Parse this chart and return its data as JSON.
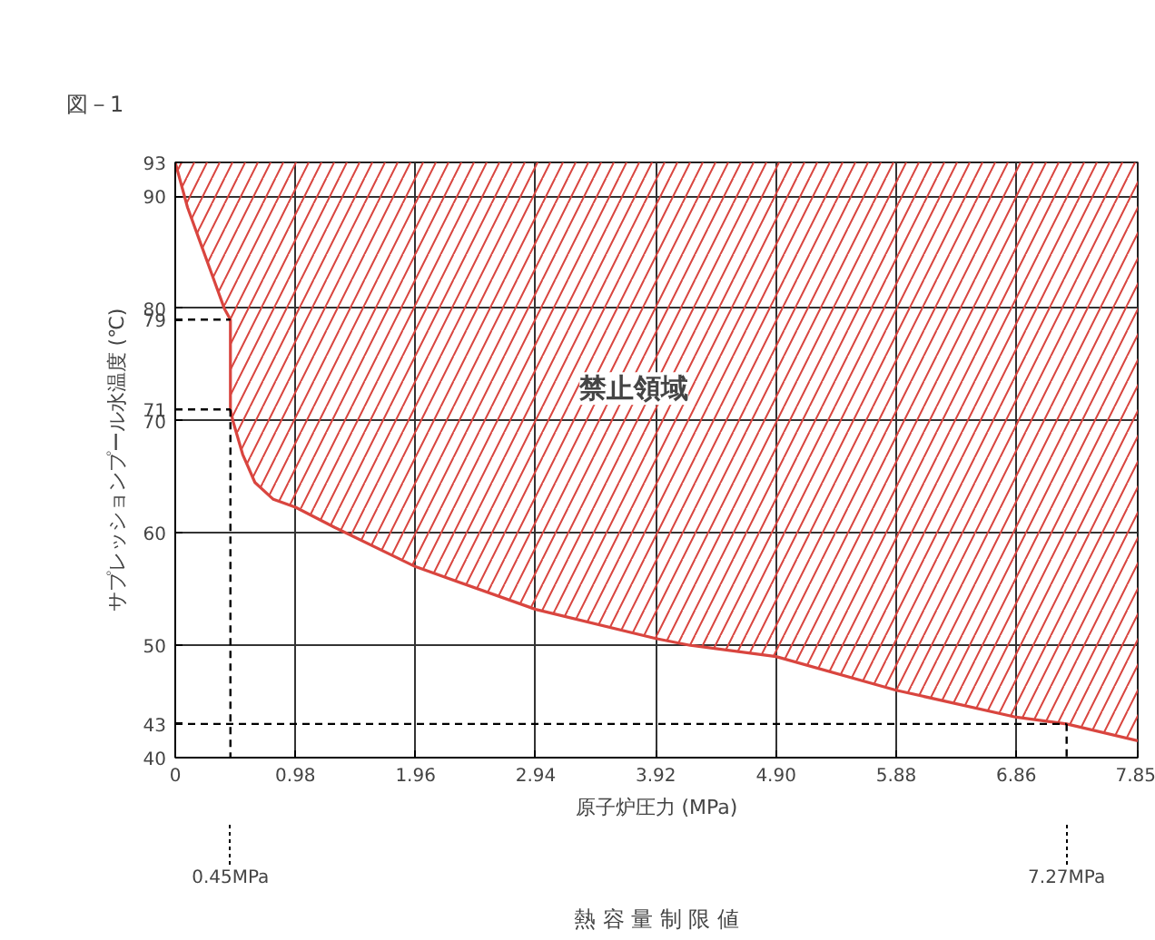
{
  "chart_data": {
    "type": "line",
    "title": "熱 容 量 制 限 値",
    "xlabel": "原子炉圧力 (MPa)",
    "ylabel": "サプレッションプール水温度 (℃)",
    "annotations": [
      "図－1",
      "禁止領域",
      "0.45MPa",
      "7.27MPa"
    ],
    "xlim": [
      0,
      7.85
    ],
    "ylim": [
      40,
      93
    ],
    "xticks": [
      0,
      0.98,
      1.96,
      2.94,
      3.92,
      {
        "value": 4.9,
        "label": "4.90"
      },
      5.88,
      6.86,
      7.85
    ],
    "yticks": [
      40,
      43,
      50,
      60,
      70,
      71,
      79,
      80,
      90,
      93
    ],
    "grid": true,
    "series": [
      {
        "color": "#d9453f",
        "x": [
          0,
          0.1,
          0.2,
          0.3,
          0.4,
          0.45,
          0.45,
          0.47,
          0.55,
          0.65,
          0.8,
          0.98,
          1.3,
          1.96,
          2.94,
          3.92,
          4.2,
          4.9,
          5.88,
          6.86,
          7.27,
          7.85
        ],
        "values": [
          93,
          89,
          86,
          83,
          80,
          79,
          71,
          70,
          67,
          64.5,
          63,
          62.3,
          60.5,
          57,
          53.2,
          50.6,
          50,
          49,
          46,
          43.6,
          43,
          41.5
        ],
        "lower": [
          93,
          89,
          86,
          83,
          80,
          79,
          71,
          70,
          67,
          64.5,
          63,
          62.3,
          60.5,
          57,
          53.2,
          50.6,
          50,
          49,
          46,
          43.6,
          43,
          41.5
        ],
        "upper": [
          93,
          93,
          93,
          93,
          93,
          93,
          93,
          93,
          93,
          93,
          93,
          93,
          93,
          93,
          93,
          93,
          93,
          93,
          93,
          93,
          93,
          93
        ]
      },
      {
        "color": "#000000",
        "line_style": "dashed",
        "x": [
          0,
          0.45
        ],
        "values": [
          79,
          79
        ]
      },
      {
        "color": "#000000",
        "line_style": "dashed",
        "x": [
          0,
          0.45
        ],
        "values": [
          71,
          71
        ]
      },
      {
        "color": "#000000",
        "line_style": "dashed",
        "x": [
          0,
          7.27
        ],
        "values": [
          43,
          43
        ]
      },
      {
        "color": "#000000",
        "line_style": "dashed",
        "x": [
          0.45,
          0.45
        ],
        "values": [
          71,
          40
        ]
      },
      {
        "color": "#000000",
        "line_style": "dashed",
        "x": [
          7.27,
          7.27
        ],
        "values": [
          43,
          40
        ]
      }
    ]
  }
}
